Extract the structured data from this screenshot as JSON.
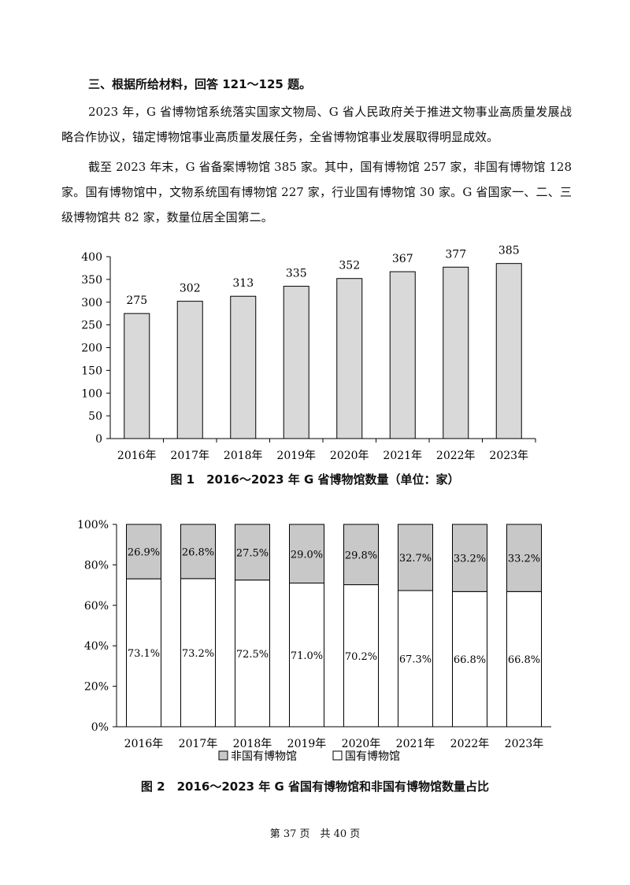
{
  "heading": "三、根据所给材料，回答 121～125 题。",
  "paragraphs": [
    "2023 年，G 省博物馆系统落实国家文物局、G 省人民政府关于推进文物事业高质量发展战略合作协议，锚定博物馆事业高质量发展任务，全省博物馆事业发展取得明显成效。",
    "截至 2023 年末，G 省备案博物馆 385 家。其中，国有博物馆 257 家，非国有博物馆 128 家。国有博物馆中，文物系统国有博物馆 227 家，行业国有博物馆 30 家。G 省国家一、二、三级博物馆共 82 家，数量位居全国第二。"
  ],
  "chart_data": [
    {
      "type": "bar",
      "categories": [
        "2016年",
        "2017年",
        "2018年",
        "2019年",
        "2020年",
        "2021年",
        "2022年",
        "2023年"
      ],
      "values": [
        275,
        302,
        313,
        335,
        352,
        367,
        377,
        385
      ],
      "yticks": [
        "0",
        "50",
        "100",
        "150",
        "200",
        "250",
        "300",
        "350",
        "400"
      ],
      "ylim": [
        0,
        400
      ],
      "bar_color": "#d9d9d9",
      "title": "图 1　2016～2023 年 G 省博物馆数量（单位：家）"
    },
    {
      "type": "bar",
      "stacked": true,
      "categories": [
        "2016年",
        "2017年",
        "2018年",
        "2019年",
        "2020年",
        "2021年",
        "2022年",
        "2023年"
      ],
      "series": [
        {
          "name": "国有博物馆",
          "values": [
            73.1,
            73.2,
            72.5,
            71.0,
            70.2,
            67.3,
            66.8,
            66.8
          ],
          "labels": [
            "73.1%",
            "73.2%",
            "72.5%",
            "71.0%",
            "70.2%",
            "67.3%",
            "66.8%",
            "66.8%"
          ],
          "color": "#ffffff"
        },
        {
          "name": "非国有博物馆",
          "values": [
            26.9,
            26.8,
            27.5,
            29.0,
            29.8,
            32.7,
            33.2,
            33.2
          ],
          "labels": [
            "26.9%",
            "26.8%",
            "27.5%",
            "29.0%",
            "29.8%",
            "32.7%",
            "33.2%",
            "33.2%"
          ],
          "color": "#c8c8c8"
        }
      ],
      "yticks": [
        "0%",
        "20%",
        "40%",
        "60%",
        "80%",
        "100%"
      ],
      "ylim": [
        0,
        100
      ],
      "legend": "bottom",
      "legend_order": [
        "非国有博物馆",
        "国有博物馆"
      ],
      "title": "图 2　2016～2023 年 G 省国有博物馆和非国有博物馆数量占比"
    }
  ],
  "footer": "第 37 页　共 40 页"
}
